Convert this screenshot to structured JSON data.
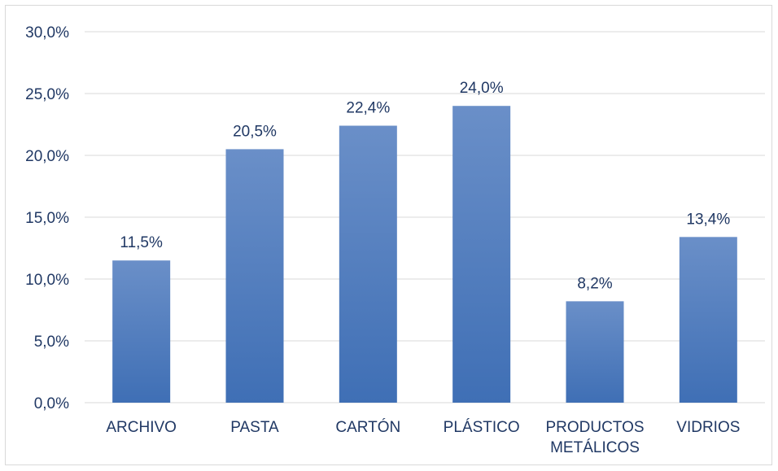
{
  "chart_data": {
    "type": "bar",
    "title": "",
    "xlabel": "",
    "ylabel": "",
    "categories": [
      [
        "ARCHIVO"
      ],
      [
        "PASTA"
      ],
      [
        "CARTÓN"
      ],
      [
        "PLÁSTICO"
      ],
      [
        "PRODUCTOS",
        "METÁLICOS"
      ],
      [
        "VIDRIOS"
      ]
    ],
    "values": [
      11.5,
      20.5,
      22.4,
      24.0,
      8.2,
      13.4
    ],
    "data_labels": [
      "11,5%",
      "20,5%",
      "22,4%",
      "24,0%",
      "8,2%",
      "13,4%"
    ],
    "ylim": [
      0,
      30
    ],
    "yticks": [
      "0,0%",
      "5,0%",
      "10,0%",
      "15,0%",
      "20,0%",
      "25,0%",
      "30,0%"
    ],
    "grid": true,
    "legend": "none",
    "colors": {
      "bar_top": "#6a8fc8",
      "bar_bottom": "#3f6fb5",
      "grid": "#d9d9d9",
      "text": "#203864"
    }
  }
}
